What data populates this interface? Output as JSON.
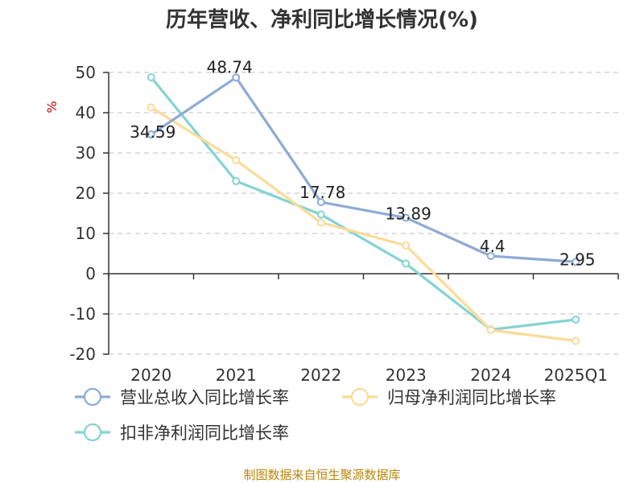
{
  "chart_data": {
    "type": "line",
    "title": "历年营收、净利同比增长情况(%)",
    "ylabel": "%",
    "x": [
      "2020",
      "2021",
      "2022",
      "2023",
      "2024",
      "2025Q1"
    ],
    "ylim": [
      -20,
      50
    ],
    "yticks": [
      50,
      40,
      30,
      20,
      10,
      0,
      -10,
      -20
    ],
    "grid": true,
    "legend_position": "bottom",
    "series": [
      {
        "name": "营业总收入同比增长率",
        "color": "#8eaad6",
        "values": [
          34.59,
          48.74,
          17.78,
          13.89,
          4.4,
          2.95
        ],
        "labels": [
          "34.59",
          "48.74",
          "17.78",
          "13.89",
          "4.4",
          "2.95"
        ]
      },
      {
        "name": "归母净利润同比增长率",
        "color": "#fbdb95",
        "values": [
          41.3,
          28.2,
          12.7,
          7.0,
          -14.0,
          -16.7
        ]
      },
      {
        "name": "扣非净利润同比增长率",
        "color": "#84d3d2",
        "values": [
          48.8,
          23.0,
          14.7,
          2.5,
          -13.9,
          -11.4
        ]
      }
    ],
    "source": "制图数据来自恒生聚源数据库"
  }
}
